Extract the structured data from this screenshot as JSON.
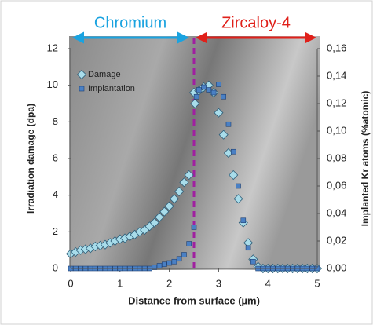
{
  "chart_data": {
    "type": "scatter",
    "annotations": [
      "Chromium",
      "Zircaloy-4"
    ],
    "annotation_colors": [
      "#1aa3e0",
      "#e0201a"
    ],
    "xlabel": "Distance from surface (µm)",
    "ylabel": "Irradiation damage (dpa)",
    "y2label": "Implanted Kr atoms (%atomic)",
    "xlim": [
      0,
      5
    ],
    "xticks": [
      0,
      1,
      2,
      3,
      4,
      5
    ],
    "ylim": [
      0,
      12
    ],
    "yticks": [
      0,
      2,
      4,
      6,
      8,
      10,
      12
    ],
    "y2lim": [
      0,
      0.16
    ],
    "y2ticks": [
      {
        "value": 0,
        "label": "0,00"
      },
      {
        "value": 0.02,
        "label": "0,02"
      },
      {
        "value": 0.04,
        "label": "0,04"
      },
      {
        "value": 0.06,
        "label": "0,06"
      },
      {
        "value": 0.08,
        "label": "0,08"
      },
      {
        "value": 0.1,
        "label": "0,10"
      },
      {
        "value": 0.12,
        "label": "0,12"
      },
      {
        "value": 0.14,
        "label": "0,14"
      },
      {
        "value": 0.16,
        "label": "0,16"
      }
    ],
    "vline": {
      "x": 2.5,
      "color": "#a020a0"
    },
    "legend": "upper left",
    "series": [
      {
        "name": "Damage",
        "marker": "diamond",
        "color": "#a8dcea",
        "x": [
          0,
          0.1,
          0.2,
          0.3,
          0.4,
          0.5,
          0.6,
          0.7,
          0.8,
          0.9,
          1.0,
          1.1,
          1.2,
          1.3,
          1.4,
          1.5,
          1.6,
          1.7,
          1.8,
          1.9,
          2.0,
          2.1,
          2.2,
          2.3,
          2.4,
          2.5,
          2.52,
          2.6,
          2.7,
          2.8,
          2.9,
          3.0,
          3.1,
          3.2,
          3.3,
          3.4,
          3.5,
          3.6,
          3.7,
          3.8,
          3.9,
          4.0,
          4.1,
          4.2,
          4.3,
          4.4,
          4.5,
          4.6,
          4.7,
          4.8,
          4.9,
          5.0
        ],
        "values": [
          0.8,
          0.9,
          1.0,
          1.05,
          1.1,
          1.2,
          1.25,
          1.3,
          1.4,
          1.5,
          1.6,
          1.65,
          1.75,
          1.85,
          2.0,
          2.1,
          2.3,
          2.5,
          2.8,
          3.1,
          3.4,
          3.8,
          4.2,
          4.7,
          5.1,
          9.6,
          9.0,
          9.7,
          9.9,
          10.0,
          9.6,
          8.5,
          7.3,
          6.3,
          5.1,
          3.8,
          2.5,
          1.4,
          0.5,
          0.1,
          0,
          0,
          0,
          0,
          0,
          0,
          0,
          0,
          0,
          0,
          0,
          0
        ]
      },
      {
        "name": "Implantation",
        "marker": "square",
        "color": "#4a80c4",
        "axis": "y2",
        "x": [
          0,
          0.1,
          0.2,
          0.3,
          0.4,
          0.5,
          0.6,
          0.7,
          0.8,
          0.9,
          1.0,
          1.1,
          1.2,
          1.3,
          1.4,
          1.5,
          1.6,
          1.7,
          1.8,
          1.9,
          2.0,
          2.1,
          2.2,
          2.3,
          2.4,
          2.5,
          2.55,
          2.6,
          2.7,
          2.8,
          2.9,
          3.0,
          3.1,
          3.2,
          3.3,
          3.4,
          3.5,
          3.6,
          3.7,
          3.8,
          3.9,
          4.0,
          4.1,
          4.2,
          4.3,
          4.4,
          4.5,
          4.6,
          4.7,
          4.8,
          4.9,
          5.0
        ],
        "values": [
          0,
          0,
          0,
          0,
          0,
          0,
          0,
          0,
          0,
          0,
          0,
          0,
          0,
          0,
          0,
          0,
          0,
          0.001,
          0.002,
          0.003,
          0.004,
          0.005,
          0.007,
          0.01,
          0.018,
          0.03,
          0.125,
          0.13,
          0.132,
          0.13,
          0.128,
          0.134,
          0.125,
          0.105,
          0.085,
          0.06,
          0.035,
          0.015,
          0.005,
          0,
          0,
          0,
          0,
          0,
          0,
          0,
          0,
          0,
          0,
          0,
          0,
          0
        ]
      }
    ]
  }
}
